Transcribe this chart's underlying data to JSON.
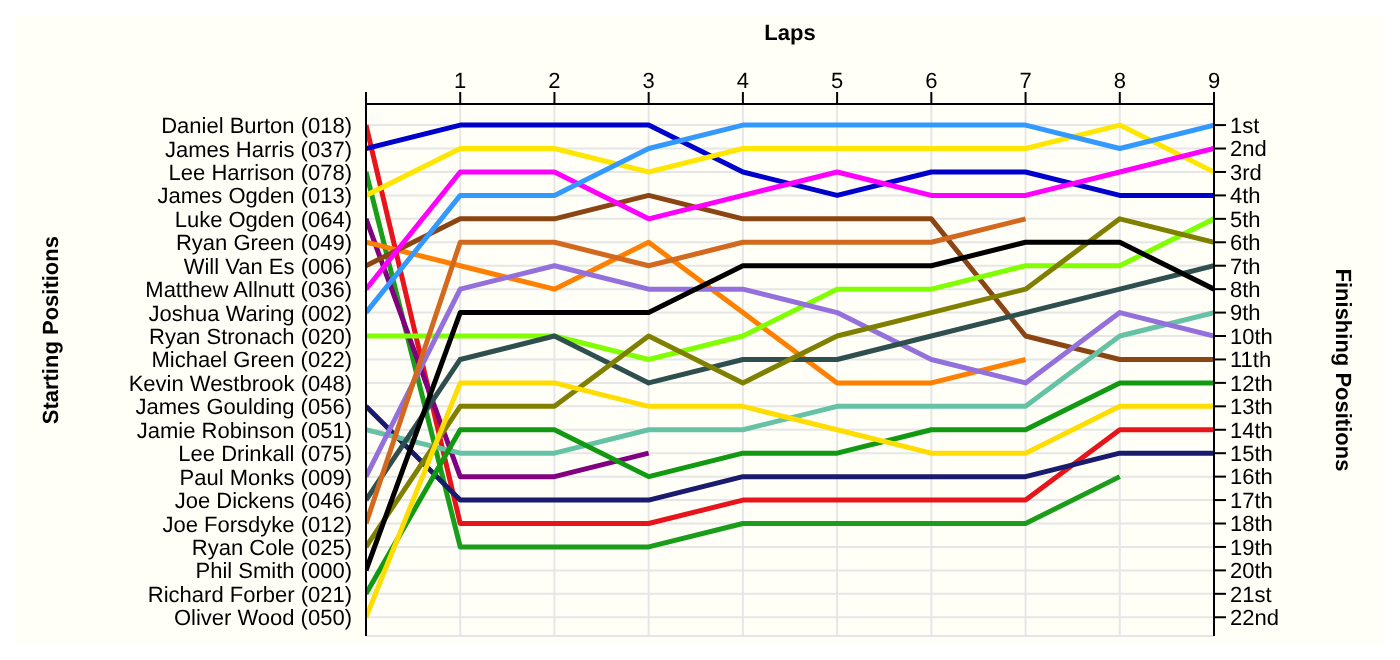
{
  "chart_data": {
    "type": "line",
    "xlabel": "Laps",
    "ylabel": "Finishing Positions",
    "grid": true,
    "line_style": "solid",
    "x": [
      0,
      1,
      2,
      3,
      4,
      5,
      6,
      7,
      8,
      9
    ],
    "xlim": [
      0,
      9
    ],
    "xticks": [
      {
        "value": 0,
        "label": null
      },
      1,
      2,
      3,
      4,
      5,
      6,
      7,
      8,
      9
    ],
    "ylim": [
      22.8,
      0.1
    ],
    "yticks": [
      {
        "value": 1,
        "label": "1st"
      },
      {
        "value": 2,
        "label": "2nd"
      },
      {
        "value": 3,
        "label": "3rd"
      },
      {
        "value": 4,
        "label": "4th"
      },
      {
        "value": 5,
        "label": "5th"
      },
      {
        "value": 6,
        "label": "6th"
      },
      {
        "value": 7,
        "label": "7th"
      },
      {
        "value": 8,
        "label": "8th"
      },
      {
        "value": 9,
        "label": "9th"
      },
      {
        "value": 10,
        "label": "10th"
      },
      {
        "value": 11,
        "label": "11th"
      },
      {
        "value": 12,
        "label": "12th"
      },
      {
        "value": 13,
        "label": "13th"
      },
      {
        "value": 14,
        "label": "14th"
      },
      {
        "value": 15,
        "label": "15th"
      },
      {
        "value": 16,
        "label": "16th"
      },
      {
        "value": 17,
        "label": "17th"
      },
      {
        "value": 18,
        "label": "18th"
      },
      {
        "value": 19,
        "label": "19th"
      },
      {
        "value": 20,
        "label": "20th"
      },
      {
        "value": 21,
        "label": "21st"
      },
      {
        "value": 22,
        "label": "22nd"
      }
    ],
    "annotations": [
      "Starting Positions",
      "Daniel Burton (018)",
      "James Harris (037)",
      "Lee Harrison (078)",
      "James Ogden (013)",
      "Luke Ogden (064)",
      "Ryan Green (049)",
      "Will Van Es (006)",
      "Matthew Allnutt (036)",
      "Joshua Waring (002)",
      "Ryan Stronach (020)",
      "Michael Green (022)",
      "Kevin Westbrook (048)",
      "James Goulding (056)",
      "Jamie Robinson (051)",
      "Lee Drinkall (075)",
      "Paul Monks (009)",
      "Joe Dickens (046)",
      "Joe Forsdyke (012)",
      "Ryan Cole (025)",
      "Phil Smith (000)",
      "Richard Forber (021)",
      "Oliver Wood (050)"
    ],
    "series": [
      {
        "color": "#e8141b",
        "values": [
          1,
          18,
          18,
          18,
          17,
          17,
          17,
          17,
          14,
          14
        ]
      },
      {
        "color": "#0000cc",
        "values": [
          2,
          1,
          1,
          1,
          3,
          4,
          3,
          3,
          4,
          4
        ]
      },
      {
        "color": "#1a9e1a",
        "values": [
          3,
          19,
          19,
          19,
          18,
          18,
          18,
          18,
          16,
          null
        ]
      },
      {
        "color": "#ffe600",
        "values": [
          4,
          2,
          2,
          3,
          2,
          2,
          2,
          2,
          1,
          3
        ]
      },
      {
        "color": "#800080",
        "values": [
          5,
          16,
          16,
          15,
          null,
          null,
          null,
          null,
          null,
          null
        ]
      },
      {
        "color": "#ff8000",
        "values": [
          6,
          7,
          8,
          6,
          9,
          12,
          12,
          11,
          null,
          null
        ]
      },
      {
        "color": "#8b4513",
        "values": [
          7,
          5,
          5,
          4,
          5,
          5,
          5,
          10,
          11,
          11
        ]
      },
      {
        "color": "#ff00ff",
        "values": [
          8,
          3,
          3,
          5,
          4,
          3,
          4,
          4,
          3,
          2
        ]
      },
      {
        "color": "#3399ff",
        "values": [
          9,
          4,
          4,
          2,
          1,
          1,
          1,
          1,
          2,
          1
        ]
      },
      {
        "color": "#80ff00",
        "values": [
          10,
          10,
          10,
          11,
          10,
          8,
          8,
          7,
          7,
          5
        ]
      },
      {
        "color": "#1a1a6e",
        "values": [
          13,
          17,
          17,
          17,
          16,
          16,
          16,
          16,
          15,
          15
        ]
      },
      {
        "color": "#66c2a5",
        "values": [
          14,
          15,
          15,
          14,
          14,
          13,
          13,
          13,
          10,
          9
        ]
      },
      {
        "color": "#9370db",
        "values": [
          16,
          8,
          7,
          8,
          8,
          9,
          11,
          12,
          9,
          10
        ]
      },
      {
        "color": "#2f4f4f",
        "values": [
          17,
          11,
          10,
          12,
          11,
          11,
          10,
          9,
          8,
          7
        ]
      },
      {
        "color": "#d2691e",
        "values": [
          18,
          6,
          6,
          7,
          6,
          6,
          6,
          5,
          null,
          null
        ]
      },
      {
        "color": "#808000",
        "values": [
          19,
          13,
          13,
          10,
          12,
          10,
          9,
          8,
          5,
          6
        ]
      },
      {
        "color": "#000000",
        "values": [
          20,
          9,
          9,
          9,
          7,
          7,
          7,
          6,
          6,
          8
        ]
      },
      {
        "color": "#119911",
        "values": [
          21,
          14,
          14,
          16,
          15,
          15,
          14,
          14,
          12,
          12
        ]
      },
      {
        "color": "#ffdd00",
        "values": [
          22,
          12,
          12,
          13,
          13,
          14,
          15,
          15,
          13,
          13
        ]
      }
    ]
  }
}
